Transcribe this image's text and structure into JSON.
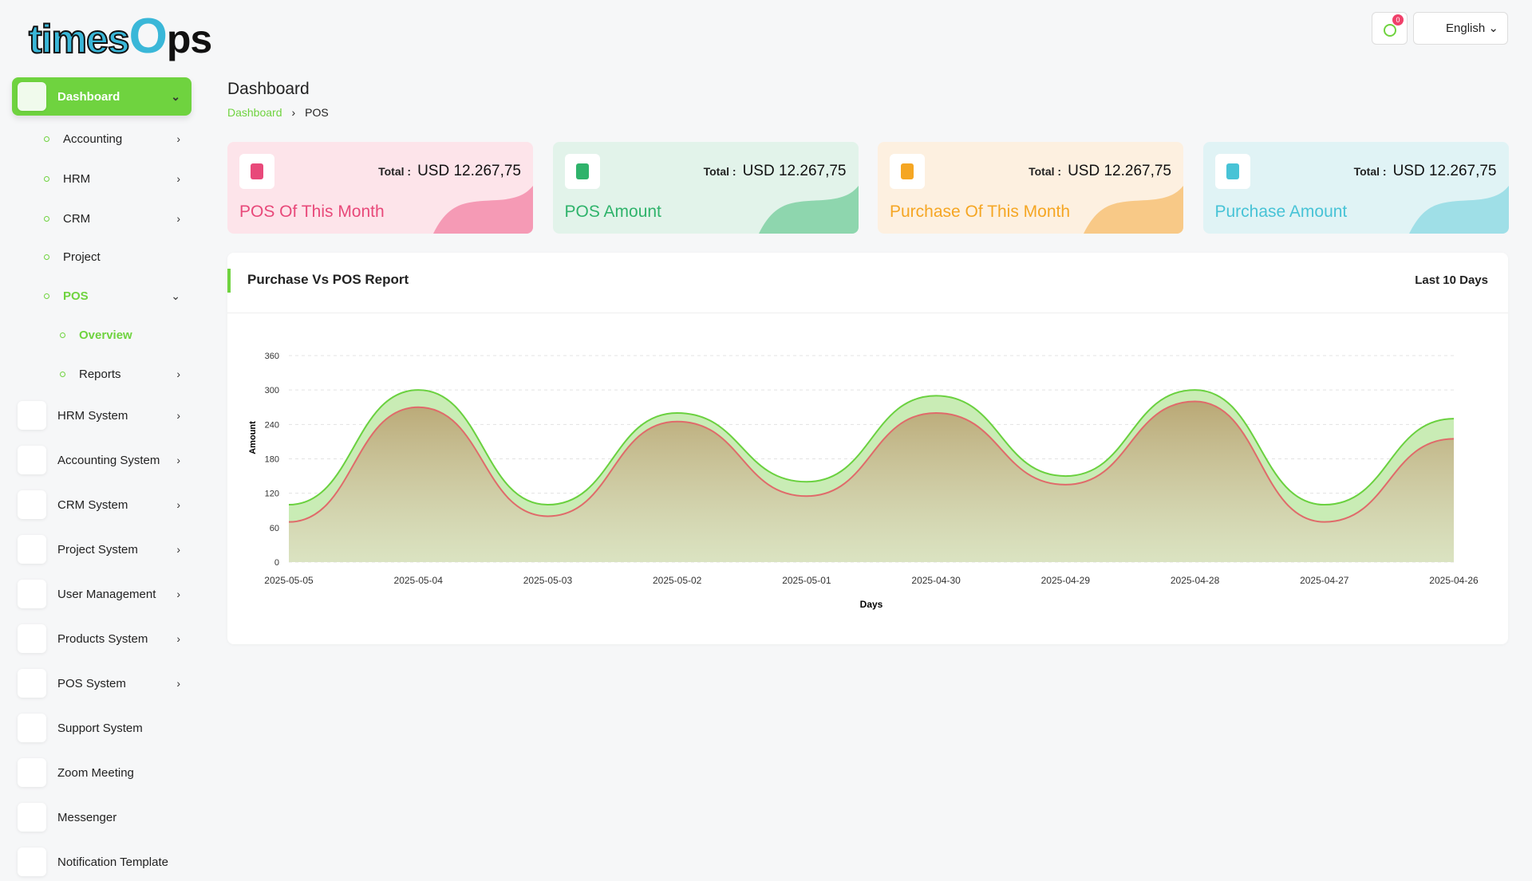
{
  "logo": [
    "times",
    "O",
    "ps"
  ],
  "topbar": {
    "notifications": "0",
    "language": "English"
  },
  "sidebar": {
    "items": [
      "Dashboard",
      "Accounting",
      "HRM",
      "CRM",
      "Project",
      "POS",
      "Overview",
      "Reports",
      "HRM System",
      "Accounting System",
      "CRM System",
      "Project System",
      "User Management",
      "Products System",
      "POS System",
      "Support System",
      "Zoom Meeting",
      "Messenger",
      "Notification Template"
    ]
  },
  "header": {
    "title": "Dashboard",
    "breadcrumb": [
      "Dashboard",
      "POS"
    ]
  },
  "cards": [
    {
      "total_label": "Total :",
      "total": "USD 12.267,75",
      "title": "POS Of This Month"
    },
    {
      "total_label": "Total :",
      "total": "USD 12.267,75",
      "title": "POS Amount"
    },
    {
      "total_label": "Total :",
      "total": "USD 12.267,75",
      "title": "Purchase Of This Month"
    },
    {
      "total_label": "Total :",
      "total": "USD 12.267,75",
      "title": "Purchase Amount"
    }
  ],
  "report": {
    "title": "Purchase Vs POS Report",
    "period": "Last 10 Days",
    "chart_data": {
      "type": "area",
      "x_label": "Days",
      "y_label": "Amount",
      "categories": [
        "2025-05-05",
        "2025-05-04",
        "2025-05-03",
        "2025-05-02",
        "2025-05-01",
        "2025-04-30",
        "2025-04-29",
        "2025-04-28",
        "2025-04-27",
        "2025-04-26"
      ],
      "series": [
        {
          "color": "#6ad13f",
          "values": [
            100,
            300,
            100,
            260,
            140,
            290,
            150,
            300,
            100,
            250
          ]
        },
        {
          "color": "#e06a6a",
          "values": [
            70,
            270,
            80,
            245,
            115,
            260,
            135,
            280,
            70,
            215
          ]
        }
      ],
      "ylim": [
        0,
        360
      ],
      "yticks": [
        0,
        60,
        120,
        180,
        240,
        300,
        360
      ],
      "grid": true
    }
  }
}
